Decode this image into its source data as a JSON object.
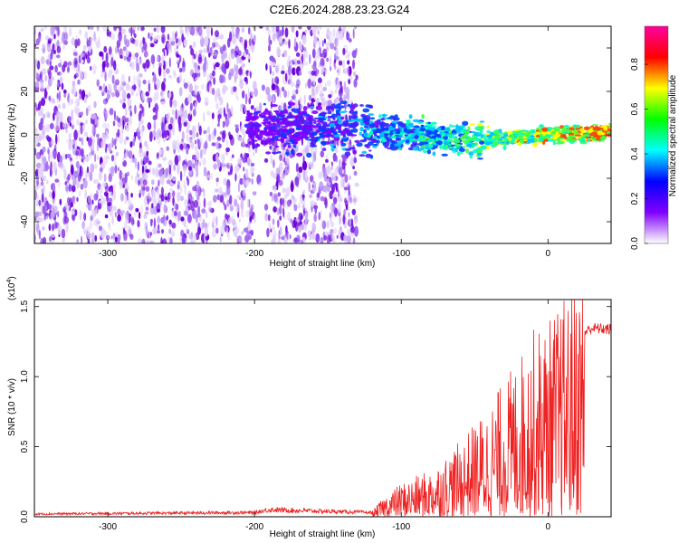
{
  "title": "C2E6.2024.288.23.23.G24",
  "chart_data": [
    {
      "type": "heatmap",
      "xlabel": "Height of straight line (km)",
      "ylabel": "Frequency (Hz)",
      "xlim": [
        -350,
        43
      ],
      "ylim": [
        -50,
        50
      ],
      "xticks": [
        "-300",
        "-200",
        "-100",
        "0"
      ],
      "yticks": [
        "40",
        "20",
        "0",
        "-20",
        "-40"
      ],
      "colorbar": {
        "label": "Normalized spectral amplitude",
        "range": [
          0.0,
          0.97
        ],
        "ticks": [
          "0.0",
          "0.2",
          "0.4",
          "0.6",
          "0.8"
        ],
        "colors": [
          "#ffffff",
          "#8000ff",
          "#0000ff",
          "#00ffff",
          "#00ff00",
          "#ffff00",
          "#ff0000",
          "#ff00a0"
        ]
      },
      "description_regions": {
        "noise_band_km": [
          -350,
          -130
        ],
        "gap_km": [
          -200,
          -190
        ],
        "signal_track": {
          "x": [
            -135,
            -100,
            -60,
            -30,
            0,
            43
          ],
          "y": [
            3,
            1,
            -2,
            -2,
            0,
            1
          ]
        }
      }
    },
    {
      "type": "line",
      "xlabel": "Height of straight line (km)",
      "ylabel": "SNR (10 * v/v)",
      "scale_label": "(x10",
      "scale_exp": "4",
      "scale_close": ")",
      "xlim": [
        -350,
        43
      ],
      "ylim": [
        0,
        1.55
      ],
      "xticks": [
        "-300",
        "-200",
        "-100",
        "0"
      ],
      "yticks": [
        "0.0",
        "0.5",
        "1.0",
        "1.5"
      ],
      "color": "#ee2222",
      "series": {
        "name": "SNR",
        "envelope_x": [
          -350,
          -200,
          -190,
          -120,
          -110,
          -100,
          -80,
          -60,
          -40,
          -20,
          -10,
          0,
          10,
          20,
          30,
          43
        ],
        "envelope_y": [
          0.02,
          0.03,
          0.05,
          0.03,
          0.12,
          0.18,
          0.25,
          0.4,
          0.6,
          0.85,
          1.0,
          1.05,
          1.15,
          1.3,
          1.36,
          1.35
        ]
      }
    }
  ]
}
